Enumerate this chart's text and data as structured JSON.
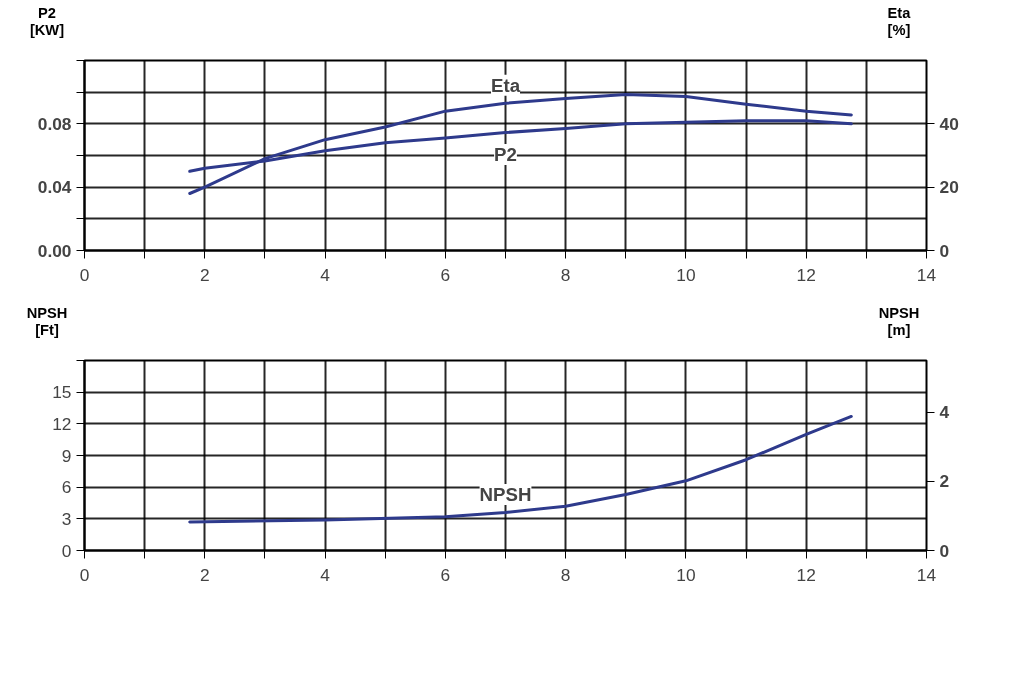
{
  "chart_data": [
    {
      "type": "line",
      "ylabel": "P2 [KW]",
      "y2label": "Eta [%]",
      "xlim": [
        0,
        14
      ],
      "xticks": [
        0,
        {
          "value": 1,
          "label": null
        },
        2,
        {
          "value": 3,
          "label": null
        },
        4,
        {
          "value": 5,
          "label": null
        },
        6,
        {
          "value": 7,
          "label": null
        },
        8,
        {
          "value": 9,
          "label": null
        },
        10,
        {
          "value": 11,
          "label": null
        },
        12,
        {
          "value": 13,
          "label": null
        },
        14
      ],
      "ylim": [
        0,
        0.12
      ],
      "yticks": [
        {
          "value": 0,
          "label": "0.00"
        },
        {
          "value": 0.02,
          "label": null
        },
        {
          "value": 0.04,
          "label": "0.04"
        },
        {
          "value": 0.06,
          "label": null
        },
        {
          "value": 0.08,
          "label": "0.08"
        },
        {
          "value": 0.1,
          "label": null
        },
        {
          "value": 0.12,
          "label": null
        }
      ],
      "y2lim": [
        0,
        60
      ],
      "y2ticks": [
        0,
        20,
        40
      ],
      "grid": true,
      "x": [
        1.75,
        2,
        3,
        4,
        5,
        6,
        7,
        8,
        9,
        10,
        11,
        12,
        12.75
      ],
      "series": [
        {
          "name": "P2",
          "color": "#2e3a8c",
          "values": [
            0.05,
            0.052,
            0.0565,
            0.063,
            0.068,
            0.071,
            0.0745,
            0.077,
            0.08,
            0.081,
            0.082,
            0.082,
            0.08
          ]
        },
        {
          "name": "Eta",
          "color": "#2e3a8c",
          "axis": "y2",
          "values": [
            18,
            20,
            29,
            35,
            39,
            44,
            46.5,
            48,
            49.3,
            48.6,
            46.2,
            44,
            42.8
          ]
        }
      ]
    },
    {
      "type": "line",
      "ylabel": "NPSH [Ft]",
      "y2label": "NPSH [m]",
      "xlim": [
        0,
        14
      ],
      "xticks": [
        0,
        {
          "value": 1,
          "label": null
        },
        2,
        {
          "value": 3,
          "label": null
        },
        4,
        {
          "value": 5,
          "label": null
        },
        6,
        {
          "value": 7,
          "label": null
        },
        8,
        {
          "value": 9,
          "label": null
        },
        10,
        {
          "value": 11,
          "label": null
        },
        12,
        {
          "value": 13,
          "label": null
        },
        14
      ],
      "ylim": [
        0,
        18
      ],
      "yticks": [
        0,
        3,
        6,
        9,
        12,
        15,
        {
          "value": 18,
          "label": null
        }
      ],
      "y2lim": [
        0,
        5.49
      ],
      "y2ticks": [
        0,
        2,
        4
      ],
      "grid": true,
      "x": [
        1.75,
        4,
        6,
        7,
        8,
        9,
        10,
        11,
        12,
        12.75
      ],
      "series": [
        {
          "name": "NPSH",
          "color": "#2e3a8c",
          "values": [
            2.7,
            2.9,
            3.2,
            3.6,
            4.2,
            5.3,
            6.6,
            8.6,
            11.0,
            12.7
          ]
        }
      ]
    }
  ]
}
